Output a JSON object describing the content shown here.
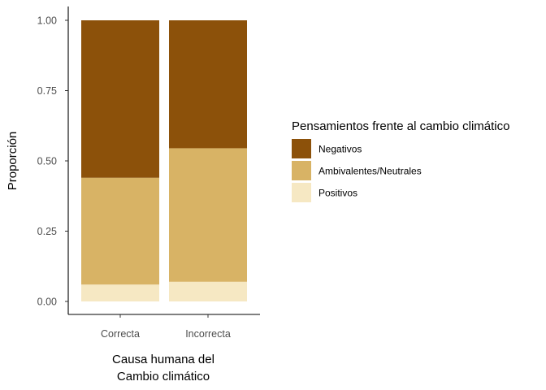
{
  "chart_data": {
    "type": "bar",
    "stacked": true,
    "categories": [
      "Correcta",
      "Incorrecta"
    ],
    "series": [
      {
        "name": "Positivos",
        "values": [
          0.06,
          0.07
        ],
        "color": "#f6e8c3"
      },
      {
        "name": "Ambivalentes/Neutrales",
        "values": [
          0.38,
          0.475
        ],
        "color": "#d8b365"
      },
      {
        "name": "Negativos",
        "values": [
          0.56,
          0.455
        ],
        "color": "#8c510a"
      }
    ],
    "legend_order": [
      "Negativos",
      "Ambivalentes/Neutrales",
      "Positivos"
    ],
    "title": "",
    "xlabel_lines": [
      "Causa humana del",
      "Cambio climático"
    ],
    "ylabel": "Proporción",
    "ylim": [
      0,
      1
    ],
    "yticks": [
      0,
      0.25,
      0.5,
      0.75,
      1
    ],
    "ytick_labels": [
      "0.00",
      "0.25",
      "0.50",
      "0.75",
      "1.00"
    ],
    "legend_title": "Pensamientos frente al cambio climático",
    "legend_position": "right",
    "grid": false
  }
}
